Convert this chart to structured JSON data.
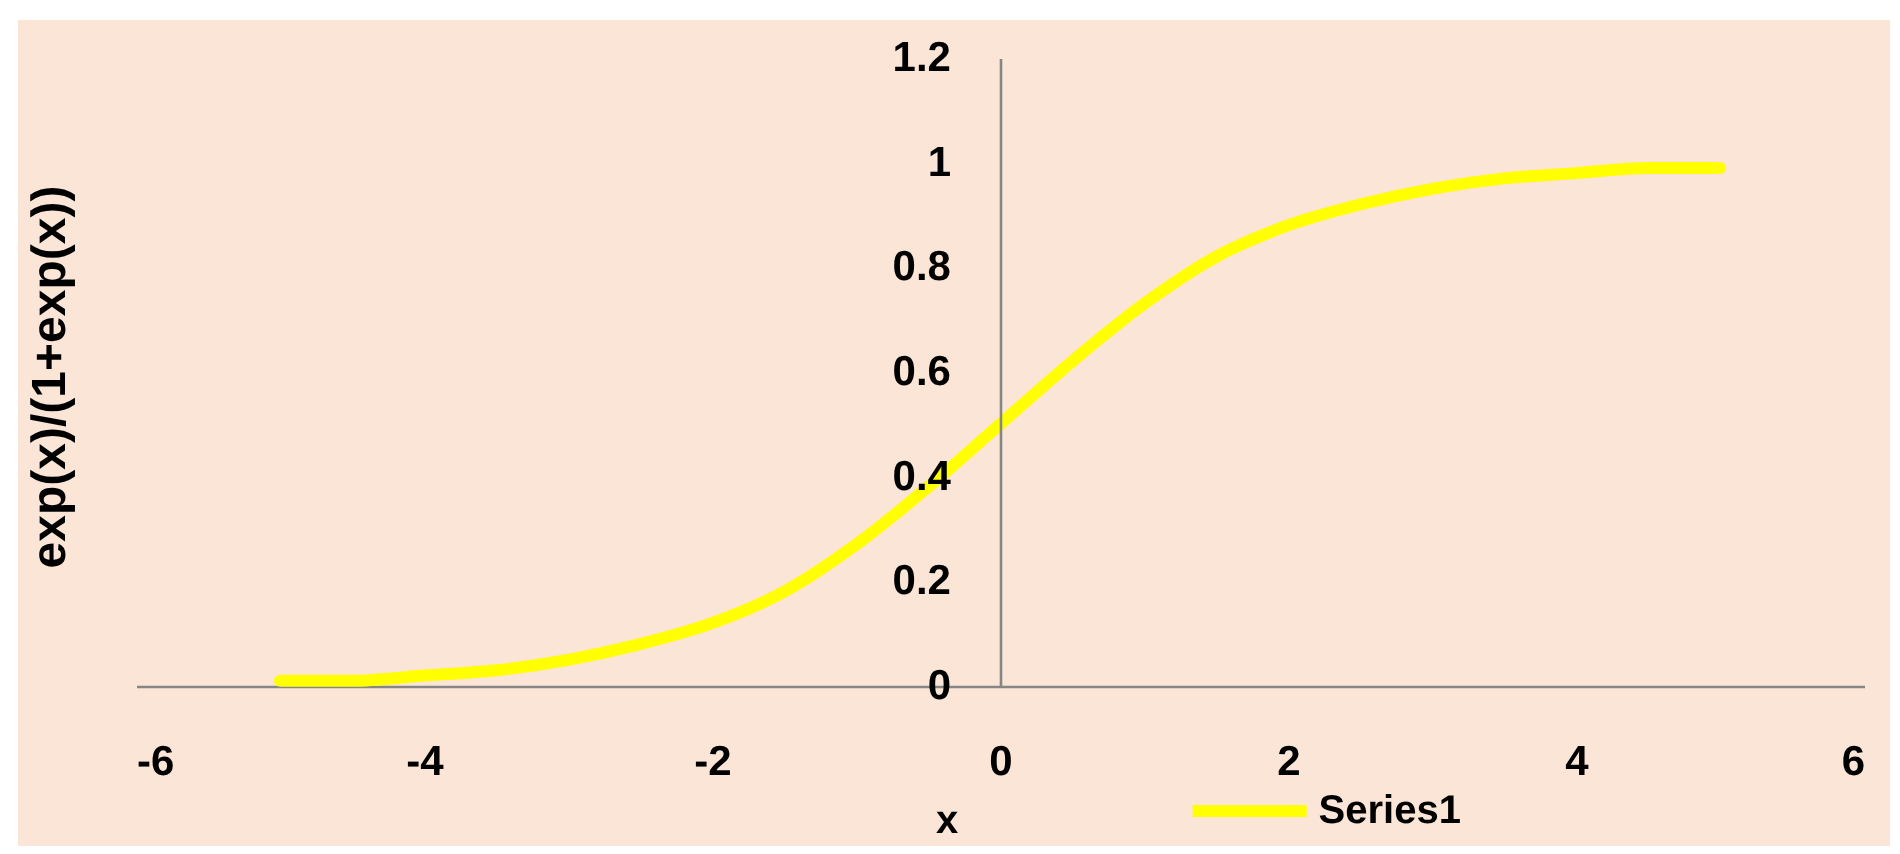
{
  "chart_data": {
    "type": "line",
    "xlabel": "x",
    "ylabel": "exp(x)/(1+exp(x))",
    "x": [
      -5,
      -4.5,
      -4,
      -3.5,
      -3,
      -2.5,
      -2,
      -1.5,
      -1,
      -0.5,
      0,
      0.5,
      1,
      1.5,
      2,
      2.5,
      3,
      3.5,
      4,
      4.5,
      5
    ],
    "series": [
      {
        "name": "Series1",
        "color": "#ffff00",
        "values": [
          0.01,
          0.01,
          0.02,
          0.03,
          0.05,
          0.08,
          0.12,
          0.18,
          0.27,
          0.38,
          0.5,
          0.62,
          0.73,
          0.82,
          0.88,
          0.92,
          0.95,
          0.97,
          0.98,
          0.99,
          0.99
        ]
      }
    ],
    "xlim": [
      -6,
      6
    ],
    "xticks": [
      -6,
      -4,
      -2,
      0,
      2,
      4,
      6
    ],
    "ylim": [
      0,
      1.2
    ],
    "yticks": [
      0,
      0.2,
      0.4,
      0.6,
      0.8,
      1,
      1.2
    ],
    "grid": false,
    "legend": "bottom",
    "line_style": "solid"
  }
}
